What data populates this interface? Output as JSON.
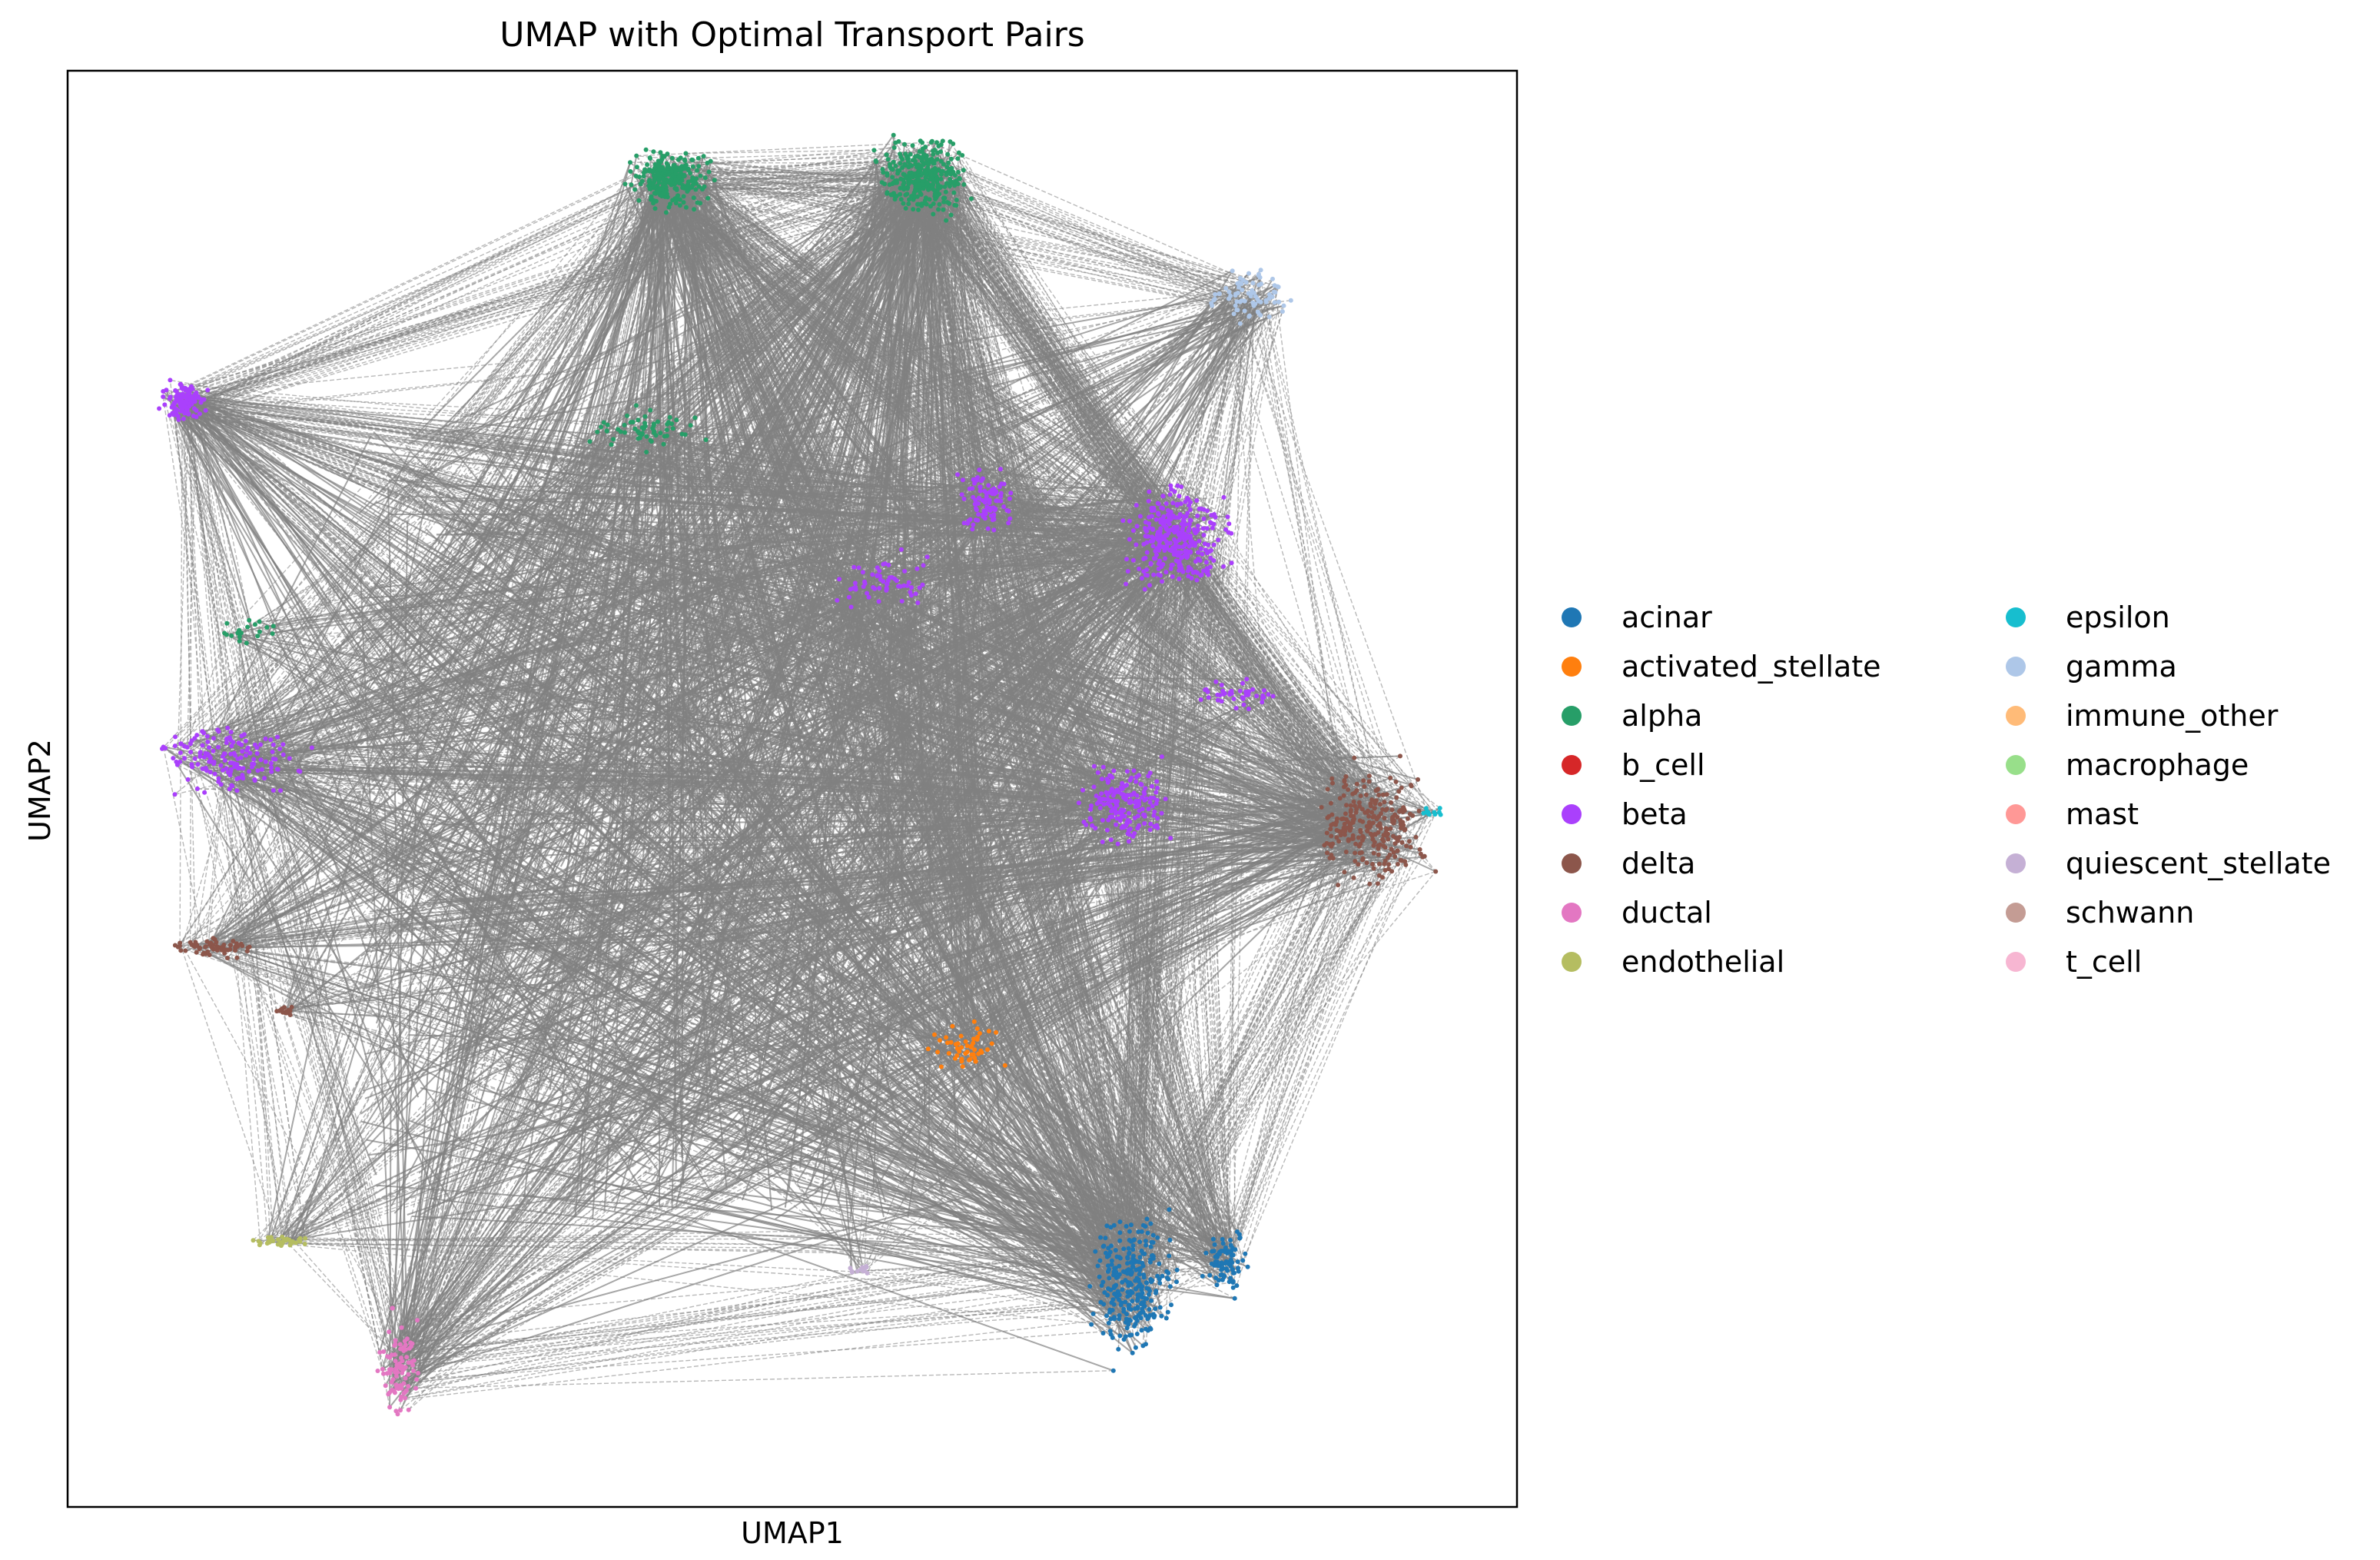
{
  "chart_data": {
    "type": "scatter",
    "title": "UMAP with Optimal Transport Pairs",
    "xlabel": "UMAP1",
    "ylabel": "UMAP2",
    "xlim": [
      0,
      100
    ],
    "ylim": [
      0,
      100
    ],
    "ticks": "none",
    "grid": false,
    "legend_placement": "right, outside plot, 2 columns",
    "pair_line_color": "#808080",
    "pair_line_style": "dashed",
    "series": [
      {
        "name": "acinar",
        "color": "#1f77b4"
      },
      {
        "name": "activated_stellate",
        "color": "#ff7f0e"
      },
      {
        "name": "alpha",
        "color": "#279e68"
      },
      {
        "name": "b_cell",
        "color": "#d62728"
      },
      {
        "name": "beta",
        "color": "#aa40fc"
      },
      {
        "name": "delta",
        "color": "#8c564b"
      },
      {
        "name": "ductal",
        "color": "#e377c2"
      },
      {
        "name": "endothelial",
        "color": "#b5bd61"
      },
      {
        "name": "epsilon",
        "color": "#17becf"
      },
      {
        "name": "gamma",
        "color": "#aec7e8"
      },
      {
        "name": "immune_other",
        "color": "#ffbb78"
      },
      {
        "name": "macrophage",
        "color": "#98df8a"
      },
      {
        "name": "mast",
        "color": "#ff9896"
      },
      {
        "name": "quiescent_stellate",
        "color": "#c5b0d5"
      },
      {
        "name": "schwann",
        "color": "#c49c94"
      },
      {
        "name": "t_cell",
        "color": "#f7b6d2"
      }
    ],
    "clusters": [
      {
        "type": "alpha",
        "x": [
          38,
          45
        ],
        "y": [
          90,
          95
        ],
        "n": 260
      },
      {
        "type": "alpha",
        "x": [
          55,
          63
        ],
        "y": [
          89,
          96
        ],
        "n": 320
      },
      {
        "type": "alpha",
        "x": [
          35,
          45
        ],
        "y": [
          73,
          77
        ],
        "n": 60
      },
      {
        "type": "alpha",
        "x": [
          10,
          15
        ],
        "y": [
          60,
          62
        ],
        "n": 20
      },
      {
        "type": "gamma",
        "x": [
          78,
          85
        ],
        "y": [
          82,
          87
        ],
        "n": 80
      },
      {
        "type": "beta",
        "x": [
          6,
          10
        ],
        "y": [
          75,
          79
        ],
        "n": 110
      },
      {
        "type": "beta",
        "x": [
          61,
          66
        ],
        "y": [
          67,
          73
        ],
        "n": 90
      },
      {
        "type": "beta",
        "x": [
          72,
          81
        ],
        "y": [
          63,
          72
        ],
        "n": 320
      },
      {
        "type": "beta",
        "x": [
          52,
          60
        ],
        "y": [
          62,
          67
        ],
        "n": 60
      },
      {
        "type": "beta",
        "x": [
          76,
          85
        ],
        "y": [
          55,
          58
        ],
        "n": 40
      },
      {
        "type": "beta",
        "x": [
          5,
          18
        ],
        "y": [
          49,
          55
        ],
        "n": 150
      },
      {
        "type": "beta",
        "x": [
          69,
          77
        ],
        "y": [
          45,
          53
        ],
        "n": 170
      },
      {
        "type": "delta",
        "x": [
          85,
          95
        ],
        "y": [
          42,
          53
        ],
        "n": 260
      },
      {
        "type": "delta",
        "x": [
          6,
          14
        ],
        "y": [
          38,
          40
        ],
        "n": 60
      },
      {
        "type": "delta",
        "x": [
          14,
          16
        ],
        "y": [
          34,
          35
        ],
        "n": 15
      },
      {
        "type": "epsilon",
        "x": [
          93,
          95
        ],
        "y": [
          48,
          49
        ],
        "n": 12
      },
      {
        "type": "activated_stellate",
        "x": [
          59,
          65
        ],
        "y": [
          30,
          34
        ],
        "n": 50
      },
      {
        "type": "endothelial",
        "x": [
          12,
          17
        ],
        "y": [
          18,
          19
        ],
        "n": 35
      },
      {
        "type": "acinar",
        "x": [
          70,
          77
        ],
        "y": [
          9,
          22
        ],
        "n": 280
      },
      {
        "type": "acinar",
        "x": [
          78,
          82
        ],
        "y": [
          14,
          20
        ],
        "n": 90
      },
      {
        "type": "ductal",
        "x": [
          21,
          25
        ],
        "y": [
          5,
          14
        ],
        "n": 90
      },
      {
        "type": "quiescent_stellate",
        "x": [
          53,
          56
        ],
        "y": [
          16,
          17
        ],
        "n": 15
      }
    ]
  }
}
